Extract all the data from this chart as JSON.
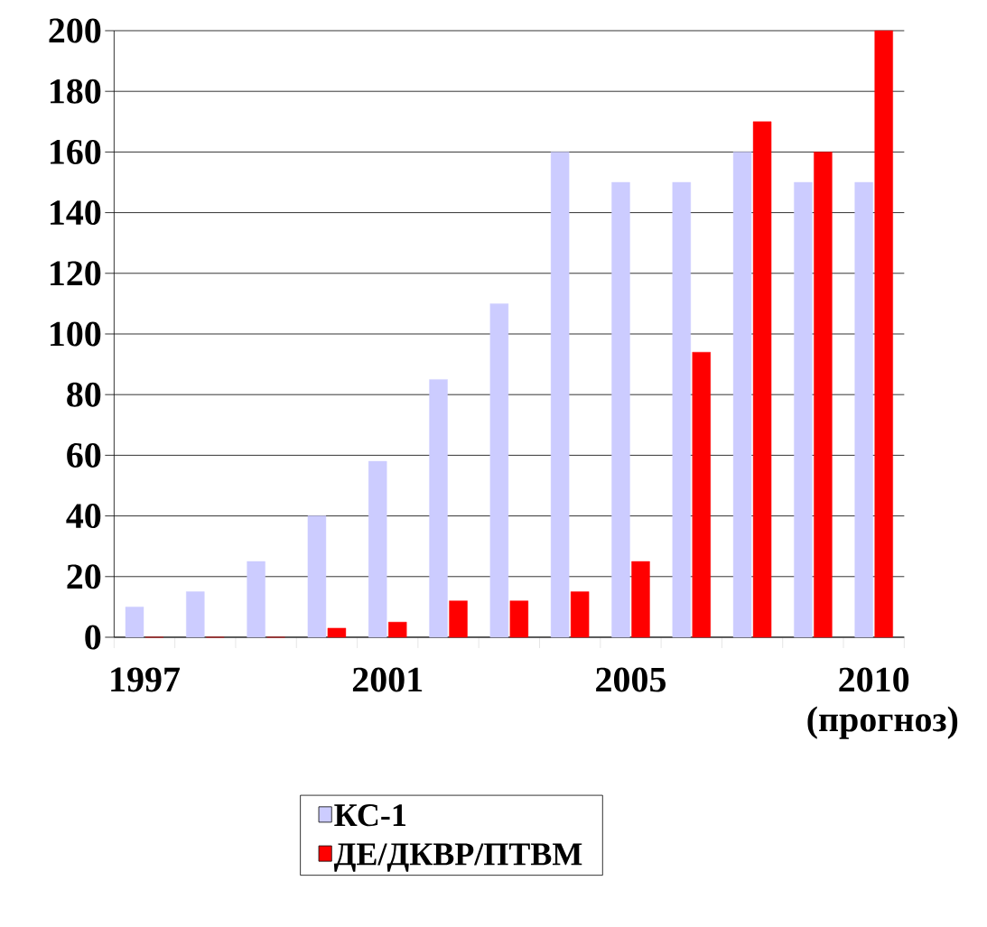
{
  "chart_data": {
    "type": "bar",
    "categories": [
      "1997",
      null,
      null,
      null,
      "2001",
      null,
      null,
      null,
      "2005",
      null,
      null,
      null,
      "2010 (прогноз)"
    ],
    "series": [
      {
        "name": "КС-1",
        "color": "#ccccff",
        "values": [
          10,
          15,
          25,
          40,
          58,
          85,
          110,
          160,
          150,
          150,
          160,
          150,
          150
        ]
      },
      {
        "name": "ДЕ/ДКВР/ПТВМ",
        "color": "#ff0000",
        "values": [
          0,
          0,
          0,
          3,
          5,
          12,
          12,
          15,
          25,
          94,
          170,
          160,
          200
        ]
      }
    ],
    "ylim": [
      0,
      200
    ],
    "yticks": [
      0,
      20,
      40,
      60,
      80,
      100,
      120,
      140,
      160,
      180,
      200
    ],
    "grid": "y",
    "legend": "bottom"
  }
}
